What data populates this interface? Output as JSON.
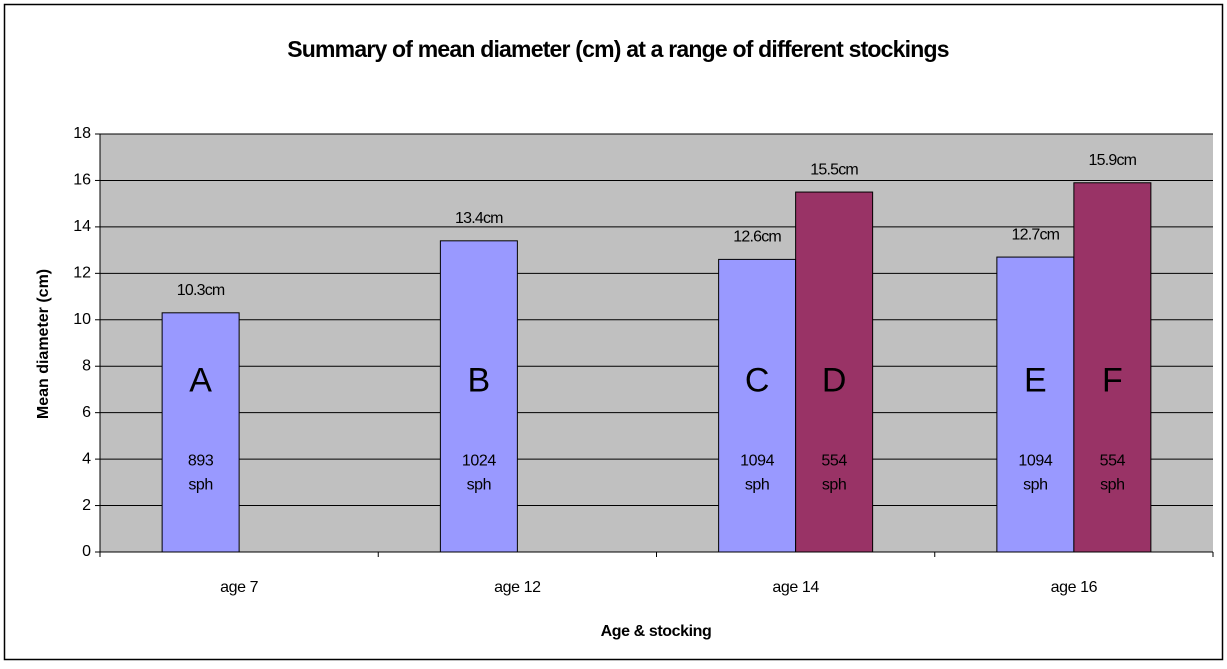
{
  "chart_data": {
    "type": "bar",
    "title": "Summary of mean diameter (cm) at a  range of different stockings",
    "x_label": "Age & stocking",
    "y_label": "Mean diameter (cm)",
    "categories": [
      "age 7",
      "age 12",
      "age 14",
      "age 16"
    ],
    "series": [
      {
        "color": "#9999ff",
        "values": [
          10.3,
          13.4,
          12.6,
          12.7
        ],
        "value_labels": [
          "10.3cm",
          "13.4cm",
          "12.6cm",
          "12.7cm"
        ],
        "letters": [
          "A",
          "B",
          "C",
          "E"
        ],
        "stocking_labels": [
          [
            "893",
            "sph"
          ],
          [
            "1024",
            "sph"
          ],
          [
            "1094",
            "sph"
          ],
          [
            "1094",
            "sph"
          ]
        ]
      },
      {
        "color": "#993366",
        "values": [
          null,
          null,
          15.5,
          15.9
        ],
        "value_labels": [
          null,
          null,
          "15.5cm",
          "15.9cm"
        ],
        "letters": [
          null,
          null,
          "D",
          "F"
        ],
        "stocking_labels": [
          null,
          null,
          [
            "554",
            "sph"
          ],
          [
            "554",
            "sph"
          ]
        ]
      }
    ],
    "ylim": [
      0,
      18
    ],
    "yticks": [
      0,
      2,
      4,
      6,
      8,
      10,
      12,
      14,
      16,
      18
    ],
    "grid": true,
    "plot_background": "#c0c0c0"
  }
}
